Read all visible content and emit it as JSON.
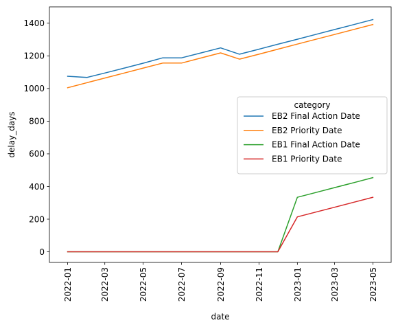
{
  "chart_data": {
    "type": "line",
    "xlabel": "date",
    "ylabel": "delay_days",
    "ylim": [
      -65,
      1500
    ],
    "xlim": [
      "2021-12-03",
      "2023-05-30"
    ],
    "x_ticks": [
      "2022-01",
      "2022-03",
      "2022-05",
      "2022-07",
      "2022-09",
      "2022-11",
      "2023-01",
      "2023-03",
      "2023-05"
    ],
    "y_ticks": [
      0,
      200,
      400,
      600,
      800,
      1000,
      1200,
      1400
    ],
    "grid": false,
    "legend": {
      "title": "category",
      "placement": "center-right"
    },
    "series": [
      {
        "name": "EB2 Final Action Date",
        "color": "#1f77b4",
        "points": [
          [
            "2022-01-01",
            1075
          ],
          [
            "2022-02-01",
            1068
          ],
          [
            "2022-03-01",
            1095
          ],
          [
            "2022-04-01",
            1125
          ],
          [
            "2022-05-01",
            1155
          ],
          [
            "2022-06-01",
            1188
          ],
          [
            "2022-07-01",
            1188
          ],
          [
            "2022-08-01",
            1218
          ],
          [
            "2022-09-01",
            1249
          ],
          [
            "2022-10-01",
            1210
          ],
          [
            "2022-11-01",
            1241
          ],
          [
            "2022-12-01",
            1271
          ],
          [
            "2023-01-01",
            1302
          ],
          [
            "2023-02-01",
            1333
          ],
          [
            "2023-03-01",
            1361
          ],
          [
            "2023-04-01",
            1392
          ],
          [
            "2023-05-01",
            1422
          ]
        ]
      },
      {
        "name": "EB2 Priority Date",
        "color": "#ff7f0e",
        "points": [
          [
            "2022-01-01",
            1005
          ],
          [
            "2022-02-01",
            1036
          ],
          [
            "2022-03-01",
            1064
          ],
          [
            "2022-04-01",
            1095
          ],
          [
            "2022-05-01",
            1125
          ],
          [
            "2022-06-01",
            1156
          ],
          [
            "2022-07-01",
            1156
          ],
          [
            "2022-08-01",
            1187
          ],
          [
            "2022-09-01",
            1218
          ],
          [
            "2022-10-01",
            1180
          ],
          [
            "2022-11-01",
            1210
          ],
          [
            "2022-12-01",
            1241
          ],
          [
            "2023-01-01",
            1272
          ],
          [
            "2023-02-01",
            1303
          ],
          [
            "2023-03-01",
            1331
          ],
          [
            "2023-04-01",
            1362
          ],
          [
            "2023-05-01",
            1392
          ]
        ]
      },
      {
        "name": "EB1 Final Action Date",
        "color": "#2ca02c",
        "points": [
          [
            "2022-01-01",
            0
          ],
          [
            "2022-02-01",
            0
          ],
          [
            "2022-03-01",
            0
          ],
          [
            "2022-04-01",
            0
          ],
          [
            "2022-05-01",
            0
          ],
          [
            "2022-06-01",
            0
          ],
          [
            "2022-07-01",
            0
          ],
          [
            "2022-08-01",
            0
          ],
          [
            "2022-09-01",
            0
          ],
          [
            "2022-10-01",
            0
          ],
          [
            "2022-11-01",
            0
          ],
          [
            "2022-12-01",
            0
          ],
          [
            "2023-01-01",
            334
          ],
          [
            "2023-02-01",
            365
          ],
          [
            "2023-03-01",
            393
          ],
          [
            "2023-04-01",
            424
          ],
          [
            "2023-05-01",
            454
          ]
        ]
      },
      {
        "name": "EB1 Priority Date",
        "color": "#d62728",
        "points": [
          [
            "2022-01-01",
            0
          ],
          [
            "2022-02-01",
            0
          ],
          [
            "2022-03-01",
            0
          ],
          [
            "2022-04-01",
            0
          ],
          [
            "2022-05-01",
            0
          ],
          [
            "2022-06-01",
            0
          ],
          [
            "2022-07-01",
            0
          ],
          [
            "2022-08-01",
            0
          ],
          [
            "2022-09-01",
            0
          ],
          [
            "2022-10-01",
            0
          ],
          [
            "2022-11-01",
            0
          ],
          [
            "2022-12-01",
            0
          ],
          [
            "2023-01-01",
            214
          ],
          [
            "2023-02-01",
            245
          ],
          [
            "2023-03-01",
            273
          ],
          [
            "2023-04-01",
            304
          ],
          [
            "2023-05-01",
            334
          ]
        ]
      }
    ]
  }
}
